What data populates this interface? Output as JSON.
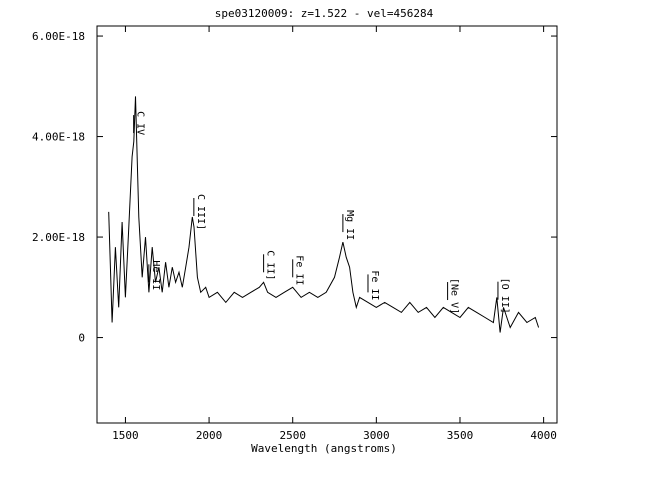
{
  "chart_data": {
    "type": "line",
    "title": "spe03120009: z=1.522 - vel=456284",
    "xlabel": "Wavelength (angstroms)",
    "ylabel": "",
    "xlim": [
      1330,
      4080
    ],
    "ylim": [
      -1.7e-18,
      6.2e-18
    ],
    "x_ticks": [
      1500,
      2000,
      2500,
      3000,
      3500,
      4000
    ],
    "x_tick_labels": [
      "1500",
      "2000",
      "2500",
      "3000",
      "3500",
      "4000"
    ],
    "y_ticks": [
      0,
      2e-18,
      4e-18,
      6e-18
    ],
    "y_tick_labels": [
      "0",
      "2.00E-18",
      "4.00E-18",
      "6.00E-18"
    ],
    "series": [
      {
        "x": [
          1400,
          1420,
          1440,
          1460,
          1480,
          1500,
          1520,
          1540,
          1550,
          1560,
          1580,
          1600,
          1620,
          1640,
          1660,
          1680,
          1700,
          1720,
          1740,
          1760,
          1780,
          1800,
          1820,
          1840,
          1860,
          1880,
          1900,
          1910,
          1930,
          1950,
          1980,
          2000,
          2050,
          2100,
          2150,
          2200,
          2250,
          2300,
          2326,
          2350,
          2400,
          2450,
          2500,
          2550,
          2600,
          2650,
          2700,
          2750,
          2780,
          2800,
          2820,
          2840,
          2860,
          2880,
          2900,
          2950,
          3000,
          3050,
          3100,
          3150,
          3200,
          3250,
          3300,
          3350,
          3400,
          3450,
          3500,
          3550,
          3600,
          3650,
          3700,
          3720,
          3740,
          3760,
          3800,
          3850,
          3900,
          3950,
          3970
        ],
        "y": [
          2.5e-18,
          3e-19,
          1.8e-18,
          6e-19,
          2.3e-18,
          8e-19,
          2.2e-18,
          3.6e-18,
          3.9e-18,
          4.8e-18,
          2.4e-18,
          1.2e-18,
          2e-18,
          9e-19,
          1.8e-18,
          1.1e-18,
          1.4e-18,
          9e-19,
          1.5e-18,
          1e-18,
          1.4e-18,
          1.1e-18,
          1.3e-18,
          1e-18,
          1.4e-18,
          1.8e-18,
          2.4e-18,
          2.2e-18,
          1.2e-18,
          9e-19,
          1e-18,
          8e-19,
          9e-19,
          7e-19,
          9e-19,
          8e-19,
          9e-19,
          1e-18,
          1.1e-18,
          9e-19,
          8e-19,
          9e-19,
          1e-18,
          8e-19,
          9e-19,
          8e-19,
          9e-19,
          1.2e-18,
          1.6e-18,
          1.9e-18,
          1.6e-18,
          1.4e-18,
          9e-19,
          6e-19,
          8e-19,
          7e-19,
          6e-19,
          7e-19,
          6e-19,
          5e-19,
          7e-19,
          5e-19,
          6e-19,
          4e-19,
          6e-19,
          5e-19,
          4e-19,
          6e-19,
          5e-19,
          4e-19,
          3e-19,
          8e-19,
          1e-19,
          6e-19,
          2e-19,
          5e-19,
          3e-19,
          4e-19,
          2e-19
        ]
      }
    ],
    "annotations": [
      {
        "label": "C IV",
        "x": 1549
      },
      {
        "label": "He II",
        "x": 1640
      },
      {
        "label": "C III]",
        "x": 1909
      },
      {
        "label": "C II]",
        "x": 2326
      },
      {
        "label": "Fe II",
        "x": 2500
      },
      {
        "label": "Mg II",
        "x": 2800
      },
      {
        "label": "Fe II",
        "x": 2950
      },
      {
        "label": "[Ne V]",
        "x": 3426
      },
      {
        "label": "[O II]",
        "x": 3727
      }
    ],
    "grid": false
  }
}
